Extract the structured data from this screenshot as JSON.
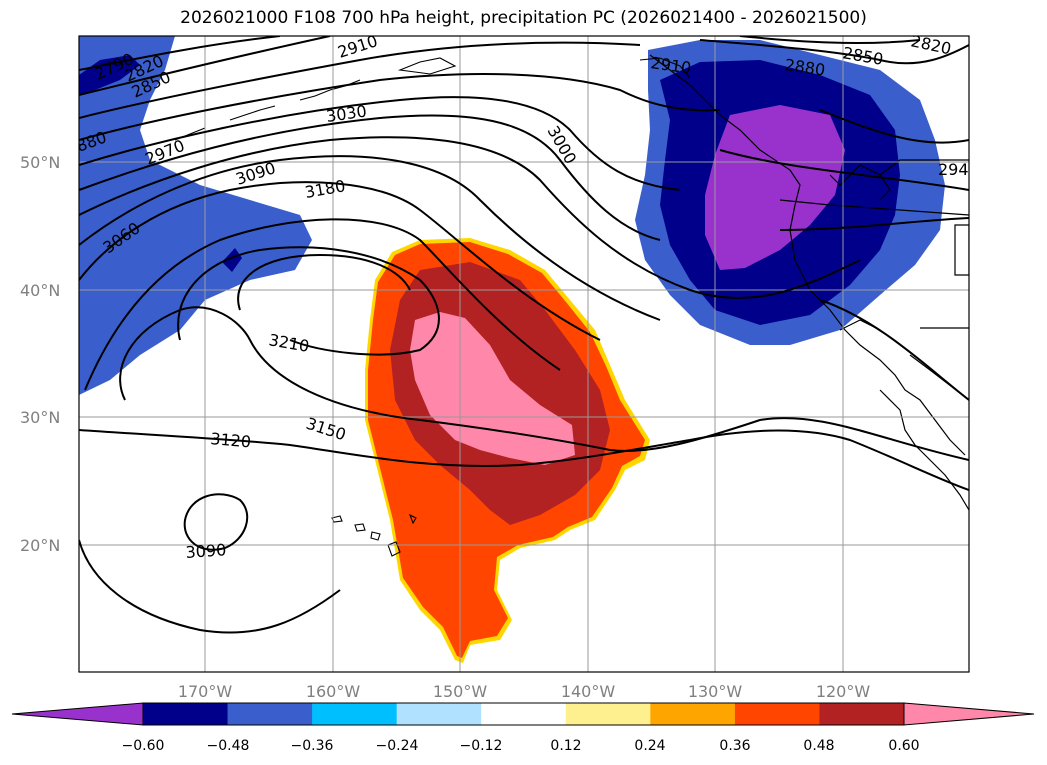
{
  "title": "2026021000 F108 700 hPa height, precipitation PC (2026021400 - 2026021500)",
  "map": {
    "lat_ticks": [
      "50°N",
      "40°N",
      "30°N",
      "20°N"
    ],
    "lon_ticks": [
      "170°W",
      "160°W",
      "150°W",
      "140°W",
      "130°W",
      "120°W"
    ]
  },
  "contour_labels": [
    "2910",
    "2790",
    "2820",
    "2850",
    "880",
    "2970",
    "3030",
    "3000",
    "3090",
    "3180",
    "3060",
    "3210",
    "3150",
    "3120",
    "3090",
    "2910",
    "2880",
    "2850",
    "2820",
    "294"
  ],
  "colorbar": {
    "colors": [
      "#9932cc",
      "#00008b",
      "#3a5fcd",
      "#00bfff",
      "#b0e2ff",
      "#ffffff",
      "#fff08f",
      "#ffa500",
      "#ff4500",
      "#b22222",
      "#ff88aa"
    ],
    "tick_labels": [
      "−0.60",
      "−0.48",
      "−0.36",
      "−0.24",
      "−0.12",
      "0.12",
      "0.24",
      "0.36",
      "0.48",
      "0.60"
    ]
  }
}
